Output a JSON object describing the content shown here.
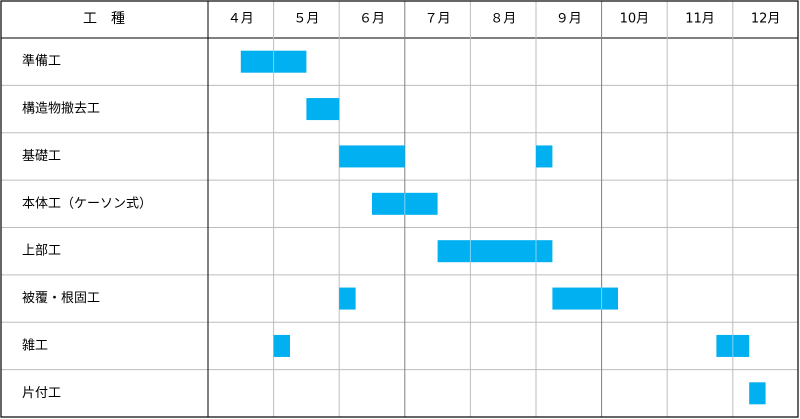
{
  "chart_data": {
    "type": "gantt",
    "header": {
      "task_column": "工　種",
      "months": [
        "４月",
        "５月",
        "６月",
        "７月",
        "８月",
        "９月",
        "10月",
        "11月",
        "12月"
      ]
    },
    "x_unit": "month",
    "x_range": [
      4,
      13
    ],
    "bar_color": "#00b0f0",
    "tasks": [
      {
        "name": "準備工",
        "bars": [
          [
            4.5,
            5.5
          ]
        ]
      },
      {
        "name": "構造物撤去工",
        "bars": [
          [
            5.5,
            6.0
          ]
        ]
      },
      {
        "name": "基礎工",
        "bars": [
          [
            6.0,
            7.0
          ],
          [
            9.0,
            9.25
          ]
        ]
      },
      {
        "name": "本体工（ケーソン式）",
        "bars": [
          [
            6.5,
            7.5
          ]
        ]
      },
      {
        "name": "上部工",
        "bars": [
          [
            7.5,
            9.25
          ]
        ]
      },
      {
        "name": "被覆・根固工",
        "bars": [
          [
            6.0,
            6.25
          ],
          [
            9.25,
            10.25
          ]
        ]
      },
      {
        "name": "雑工",
        "bars": [
          [
            5.0,
            5.25
          ],
          [
            11.75,
            12.25
          ]
        ]
      },
      {
        "name": "片付工",
        "bars": [
          [
            12.25,
            12.5
          ]
        ]
      }
    ]
  }
}
